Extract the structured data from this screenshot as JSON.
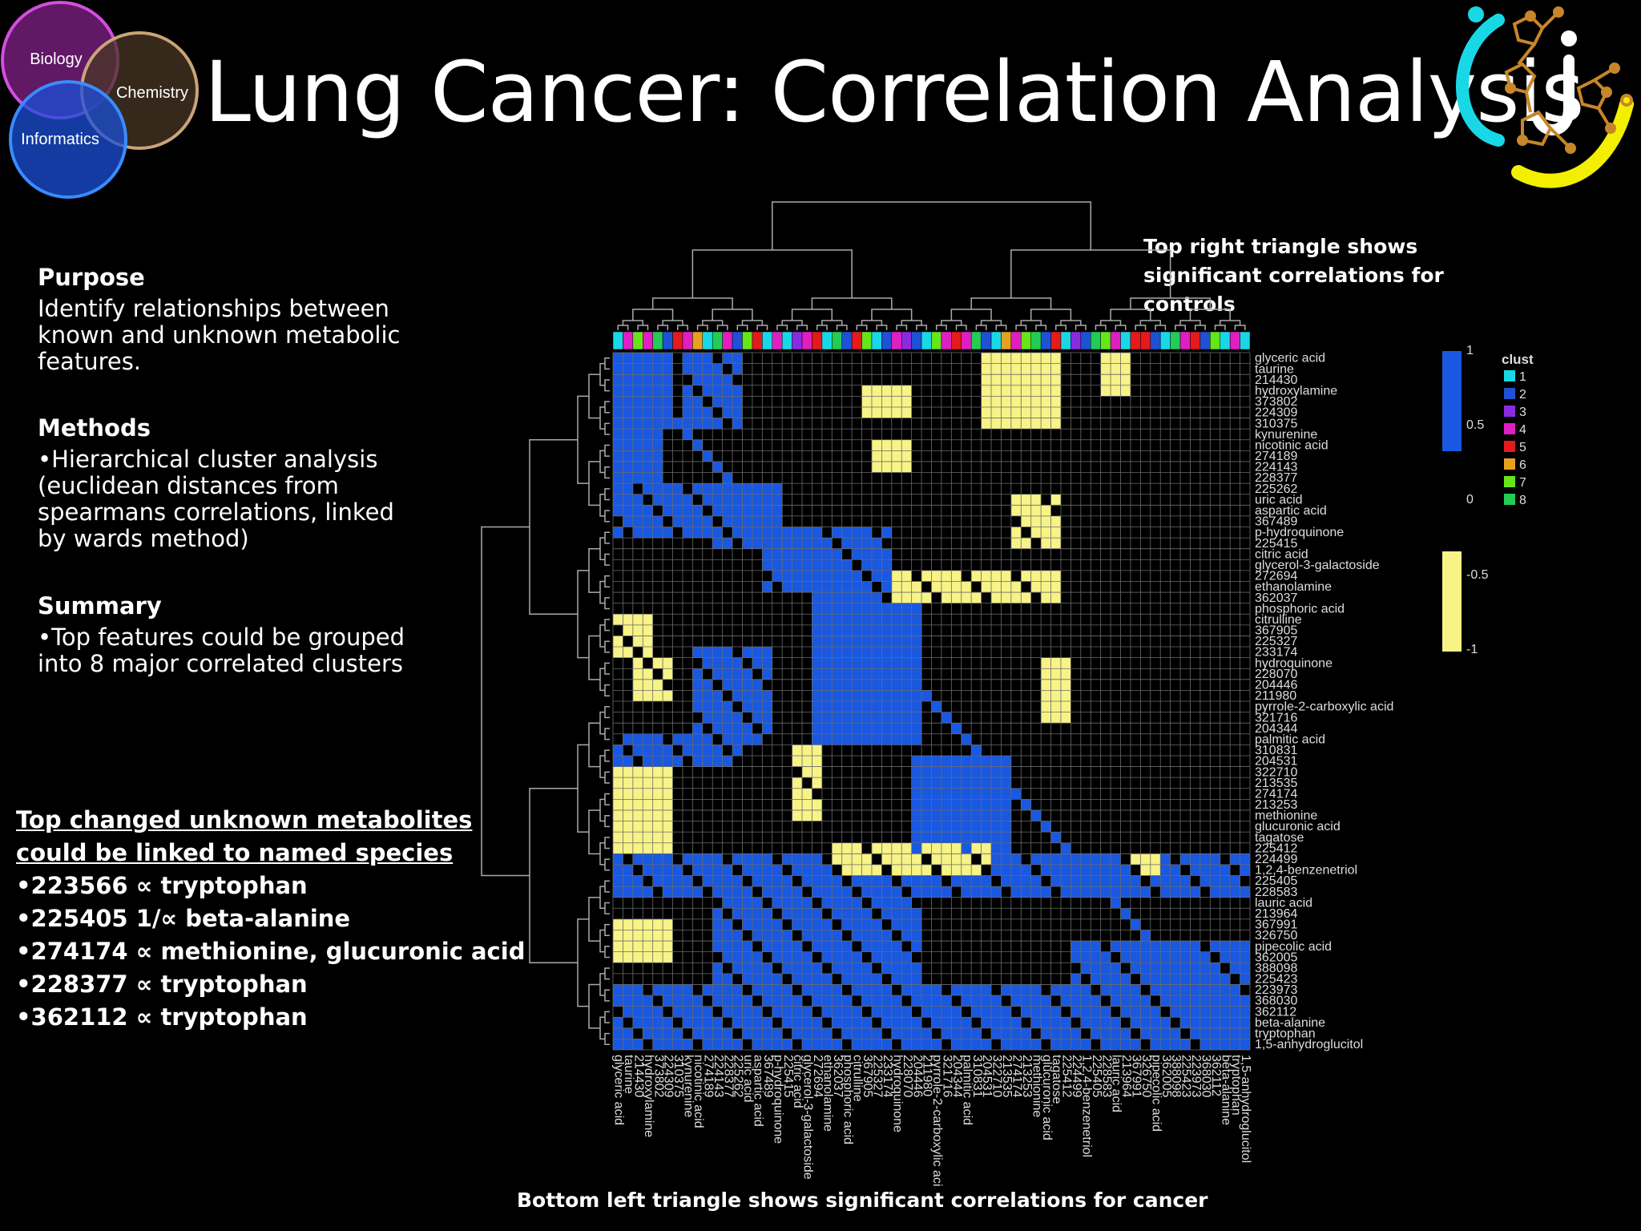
{
  "title": "Lung Cancer: Correlation Analysis",
  "venn": {
    "labels": [
      "Biology",
      "Chemistry",
      "Informatics"
    ],
    "colors": [
      "#b02cb8",
      "#c9a477",
      "#2f7cf2"
    ]
  },
  "logo": {
    "icon": "molecule-logo-icon"
  },
  "purpose": {
    "heading": "Purpose",
    "text": "Identify relationships between known and unknown metabolic features."
  },
  "methods": {
    "heading": "Methods",
    "text": "•Hierarchical cluster analysis (euclidean distances from spearmans correlations, linked by wards method)"
  },
  "summary": {
    "heading": "Summary",
    "text": "•Top features could be grouped into 8 major correlated clusters"
  },
  "linked": {
    "title": "Top changed unknown metabolites could be linked to named species",
    "items": [
      "•223566 ∝ tryptophan",
      "•225405 1/∝ beta-alanine",
      "•274174 ∝  methionine, glucuronic acid",
      "•228377 ∝ tryptophan",
      "•362112 ∝ tryptophan"
    ]
  },
  "top_note": "Top right triangle shows significant correlations for controls",
  "bottom_note": "Bottom left triangle shows significant correlations for cancer",
  "chart_data": {
    "type": "heatmap",
    "row_labels": [
      "glyceric acid",
      "taurine",
      "214430",
      "hydroxylamine",
      "373802",
      "224309",
      "310375",
      "kynurenine",
      "nicotinic acid",
      "274189",
      "224143",
      "228377",
      "225262",
      "uric acid",
      "aspartic acid",
      "367489",
      "p-hydroquinone",
      "225415",
      "citric acid",
      "glycerol-3-galactoside",
      "272694",
      "ethanolamine",
      "362037",
      "phosphoric acid",
      "citrulline",
      "367905",
      "225327",
      "233174",
      "hydroquinone",
      "228070",
      "204446",
      "211980",
      "pyrrole-2-carboxylic acid",
      "321716",
      "204344",
      "palmitic acid",
      "310831",
      "204531",
      "322710",
      "213535",
      "274174",
      "213253",
      "methionine",
      "glucuronic acid",
      "tagatose",
      "225412",
      "224499",
      "1,2,4-benzenetriol",
      "225405",
      "228583",
      "lauric acid",
      "213964",
      "367991",
      "326750",
      "pipecolic acid",
      "362005",
      "388098",
      "225423",
      "223973",
      "368030",
      "362112",
      "beta-alanine",
      "tryptophan",
      "1,5-anhydroglucitol"
    ],
    "col_labels": [
      "glyceric acid",
      "taurine",
      "214430",
      "hydroxylamine",
      "373802",
      "224309",
      "310375",
      "kynurenine",
      "nicotinic acid",
      "274189",
      "224143",
      "228377",
      "225262",
      "uric acid",
      "aspartic acid",
      "367489",
      "p-hydroquinone",
      "225415",
      "citric acid",
      "glycerol-3-galactoside",
      "272694",
      "ethanolamine",
      "362037",
      "phosphoric acid",
      "citrulline",
      "367905",
      "225327",
      "233174",
      "hydroquinone",
      "228070",
      "204446",
      "211980",
      "pyrrole-2-carboxylic acid",
      "321716",
      "204344",
      "palmitic acid",
      "310831",
      "204531",
      "322710",
      "213535",
      "274174",
      "213253",
      "methionine",
      "glucuronic acid",
      "tagatose",
      "225412",
      "224499",
      "1,2,4-benzenetriol",
      "225405",
      "228583",
      "lauric acid",
      "213964",
      "367991",
      "326750",
      "pipecolic acid",
      "362005",
      "388098",
      "225423",
      "223973",
      "368030",
      "362112",
      "beta-alanine",
      "tryptophan",
      "1,5-anhydroglucitol"
    ],
    "col_clusters": [
      1,
      4,
      7,
      4,
      8,
      2,
      5,
      4,
      6,
      1,
      8,
      4,
      2,
      7,
      5,
      1,
      4,
      1,
      3,
      4,
      5,
      1,
      8,
      2,
      5,
      7,
      1,
      2,
      4,
      3,
      2,
      1,
      7,
      4,
      5,
      4,
      8,
      2,
      1,
      6,
      4,
      7,
      8,
      2,
      5,
      1,
      3,
      2,
      8,
      7,
      4,
      1,
      5,
      5,
      2,
      1,
      8,
      4,
      5,
      2,
      7,
      1,
      4,
      1
    ],
    "blocks": [
      {
        "rows": [
          0,
          6
        ],
        "cols": [
          0,
          5
        ],
        "value": 0.8
      },
      {
        "rows": [
          0,
          6
        ],
        "cols": [
          7,
          12
        ],
        "value": 0.7
      },
      {
        "rows": [
          7,
          11
        ],
        "cols": [
          0,
          4
        ],
        "value": 0.8
      },
      {
        "rows": [
          12,
          16
        ],
        "cols": [
          0,
          9
        ],
        "value": 0.7
      },
      {
        "rows": [
          12,
          17
        ],
        "cols": [
          10,
          16
        ],
        "value": 0.7
      },
      {
        "rows": [
          16,
          21
        ],
        "cols": [
          15,
          26
        ],
        "value": 0.7
      },
      {
        "rows": [
          16,
          22
        ],
        "cols": [
          20,
          27
        ],
        "value": 0.7
      },
      {
        "rows": [
          23,
          35
        ],
        "cols": [
          20,
          30
        ],
        "value": 0.8
      },
      {
        "rows": [
          27,
          35
        ],
        "cols": [
          8,
          15
        ],
        "value": 0.6
      },
      {
        "rows": [
          35,
          37
        ],
        "cols": [
          0,
          12
        ],
        "value": 0.6
      },
      {
        "rows": [
          37,
          45
        ],
        "cols": [
          30,
          39
        ],
        "value": 0.9
      },
      {
        "rows": [
          46,
          49
        ],
        "cols": [
          0,
          63
        ],
        "value": 0.6
      },
      {
        "rows": [
          50,
          63
        ],
        "cols": [
          10,
          30
        ],
        "value": 0.6
      },
      {
        "rows": [
          54,
          63
        ],
        "cols": [
          46,
          63
        ],
        "value": 0.6
      },
      {
        "rows": [
          58,
          63
        ],
        "cols": [
          0,
          63
        ],
        "value": 0.55
      },
      {
        "rows": [
          0,
          6
        ],
        "cols": [
          37,
          44
        ],
        "value": -0.9
      },
      {
        "rows": [
          3,
          5
        ],
        "cols": [
          25,
          29
        ],
        "value": -0.8
      },
      {
        "rows": [
          8,
          10
        ],
        "cols": [
          26,
          29
        ],
        "value": -0.8
      },
      {
        "rows": [
          13,
          17
        ],
        "cols": [
          40,
          44
        ],
        "value": -0.7
      },
      {
        "rows": [
          20,
          22
        ],
        "cols": [
          28,
          44
        ],
        "value": -0.7
      },
      {
        "rows": [
          28,
          33
        ],
        "cols": [
          43,
          45
        ],
        "value": -0.8
      },
      {
        "rows": [
          38,
          45
        ],
        "cols": [
          0,
          5
        ],
        "value": -0.9
      },
      {
        "rows": [
          45,
          47
        ],
        "cols": [
          22,
          37
        ],
        "value": -0.7
      },
      {
        "rows": [
          52,
          55
        ],
        "cols": [
          0,
          5
        ],
        "value": -0.8
      },
      {
        "rows": [
          36,
          42
        ],
        "cols": [
          18,
          20
        ],
        "value": -0.7
      },
      {
        "rows": [
          0,
          3
        ],
        "cols": [
          49,
          51
        ],
        "value": -0.8
      },
      {
        "rows": [
          24,
          27
        ],
        "cols": [
          0,
          3
        ],
        "value": -0.7
      },
      {
        "rows": [
          46,
          47
        ],
        "cols": [
          52,
          54
        ],
        "value": -0.7
      },
      {
        "rows": [
          28,
          31
        ],
        "cols": [
          2,
          5
        ],
        "value": -0.7
      }
    ],
    "color_scale": {
      "title": "",
      "ticks": [
        "1",
        "0.5",
        "0",
        "-0.5",
        "-1"
      ],
      "positive": "#1958e0",
      "negative": "#f7f386",
      "neutral": "#000000"
    },
    "cluster_legend": {
      "title": "clust",
      "labels": [
        "1",
        "2",
        "3",
        "4",
        "5",
        "6",
        "7",
        "8"
      ],
      "colors": [
        "#19d8e6",
        "#1f51d6",
        "#8a2be2",
        "#e01fc2",
        "#e41a1c",
        "#e6a11e",
        "#66e619",
        "#22cc55"
      ]
    },
    "grid": true
  }
}
